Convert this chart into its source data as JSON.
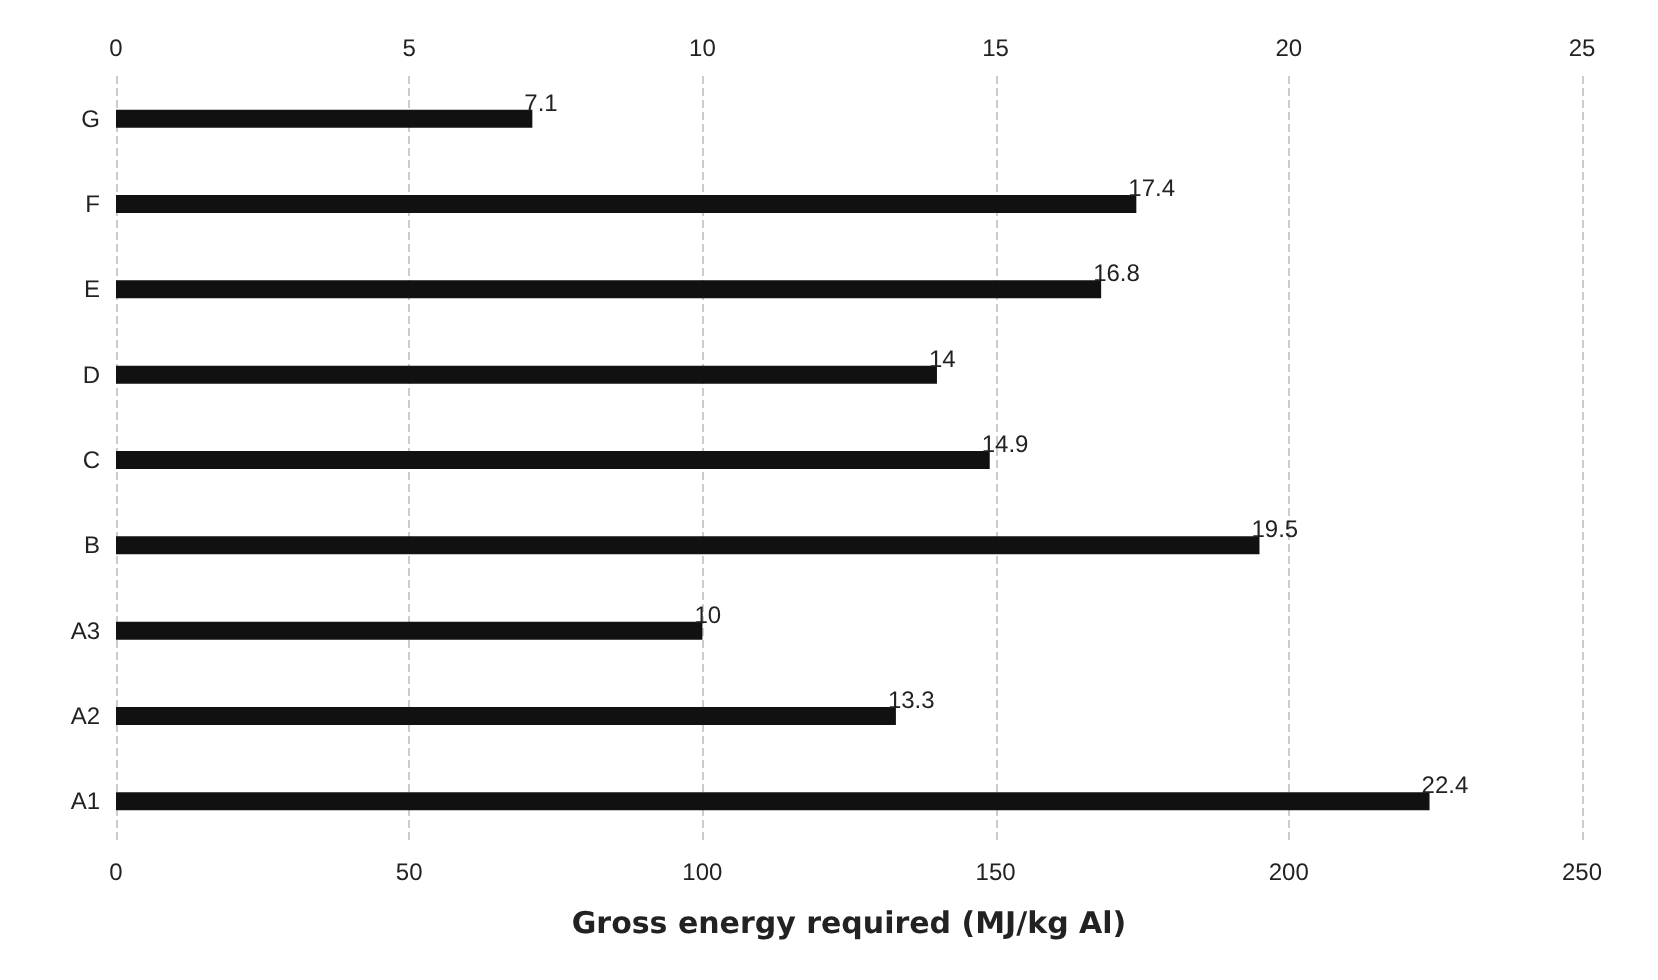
{
  "chart_data": {
    "type": "bar",
    "orientation": "horizontal",
    "xlabel": "Gross energy required (MJ/kg Al)",
    "categories": [
      "G",
      "F",
      "E",
      "D",
      "C",
      "B",
      "A3",
      "A2",
      "A1"
    ],
    "series": [
      {
        "color": "#111111",
        "axis": "x2",
        "values": [
          7.1,
          17.4,
          16.8,
          14,
          14.9,
          19.5,
          10,
          13.3,
          22.4
        ]
      }
    ],
    "data_labels": true,
    "xlim": [
      0,
      250
    ],
    "xticks": [
      0,
      50,
      100,
      150,
      200,
      250
    ],
    "x2lim": [
      0,
      25
    ],
    "x2ticks": [
      0,
      5,
      10,
      15,
      20,
      25
    ],
    "grid": "x"
  }
}
